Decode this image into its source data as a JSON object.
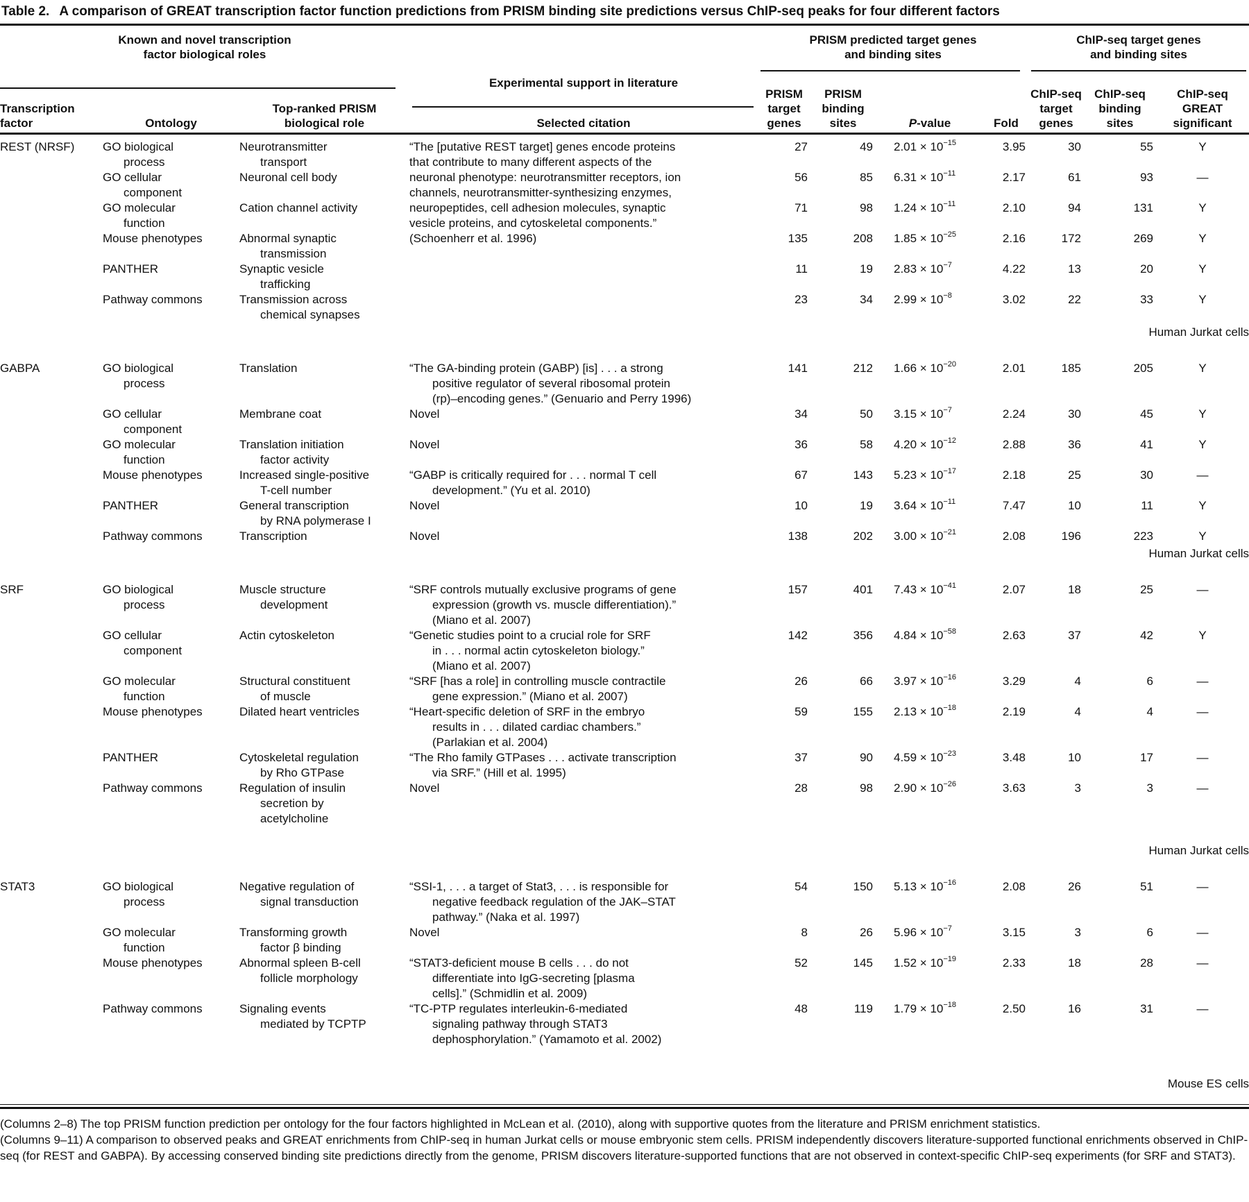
{
  "title": {
    "label": "Table 2.",
    "text": "A comparison of GREAT transcription factor function predictions from PRISM binding site predictions versus ChIP-seq peaks for four different factors"
  },
  "header": {
    "group_known": "Known and novel transcription\nfactor biological roles",
    "group_experimental": "Experimental support in literature",
    "group_prism": "PRISM predicted target genes\nand binding sites",
    "group_chipseq": "ChIP-seq target genes\nand binding sites",
    "col_factor": "Transcription\nfactor",
    "col_ontology": "Ontology",
    "col_role": "Top-ranked PRISM\nbiological role",
    "col_citation": "Selected citation",
    "col_prism_target_genes": "PRISM\ntarget\ngenes",
    "col_prism_binding_sites": "PRISM\nbinding\nsites",
    "col_pvalue": "P-value",
    "col_fold": "Fold",
    "col_chipseq_target_genes": "ChIP-seq\ntarget\ngenes",
    "col_chipseq_binding_sites": "ChIP-seq\nbinding\nsites",
    "col_great_significant": "ChIP-seq\nGREAT\nsignificant"
  },
  "table": {
    "sections": [
      {
        "factor": "REST (NRSF)",
        "note": "Human Jurkat cells",
        "block_citation": "“The [putative REST target] genes encode proteins\nthat contribute to many different aspects of the\nneuronal phenotype: neurotransmitter receptors, ion\nchannels, neurotransmitter-synthesizing enzymes,\nneuropeptides, cell adhesion molecules, synaptic\nvesicle proteins, and cytoskeletal components.”\n(Schoenherr et al. 1996)",
        "rows": [
          {
            "ontology": "GO biological\nprocess",
            "role": "Neurotransmitter\ntransport",
            "citation": "",
            "prism_target_genes": "27",
            "prism_binding_sites": "49",
            "pvalue": {
              "base": "2.01 × 10",
              "exp": "−15"
            },
            "fold": "3.95",
            "chipseq_target_genes": "30",
            "chipseq_binding_sites": "55",
            "great_significant": "Y"
          },
          {
            "ontology": "GO cellular\ncomponent",
            "role": "Neuronal cell body",
            "citation": "",
            "prism_target_genes": "56",
            "prism_binding_sites": "85",
            "pvalue": {
              "base": "6.31 × 10",
              "exp": "−11"
            },
            "fold": "2.17",
            "chipseq_target_genes": "61",
            "chipseq_binding_sites": "93",
            "great_significant": "—"
          },
          {
            "ontology": "GO molecular\nfunction",
            "role": "Cation channel activity",
            "citation": "",
            "prism_target_genes": "71",
            "prism_binding_sites": "98",
            "pvalue": {
              "base": "1.24 × 10",
              "exp": "−11"
            },
            "fold": "2.10",
            "chipseq_target_genes": "94",
            "chipseq_binding_sites": "131",
            "great_significant": "Y"
          },
          {
            "ontology": "Mouse phenotypes",
            "role": "Abnormal synaptic\ntransmission",
            "citation": "",
            "prism_target_genes": "135",
            "prism_binding_sites": "208",
            "pvalue": {
              "base": "1.85 × 10",
              "exp": "−25"
            },
            "fold": "2.16",
            "chipseq_target_genes": "172",
            "chipseq_binding_sites": "269",
            "great_significant": "Y"
          },
          {
            "ontology": "PANTHER",
            "role": "Synaptic vesicle\ntrafficking",
            "citation": "",
            "prism_target_genes": "11",
            "prism_binding_sites": "19",
            "pvalue": {
              "base": "2.83 × 10",
              "exp": "−7"
            },
            "fold": "4.22",
            "chipseq_target_genes": "13",
            "chipseq_binding_sites": "20",
            "great_significant": "Y"
          },
          {
            "ontology": "Pathway commons",
            "role": "Transmission across\nchemical synapses",
            "citation": "",
            "prism_target_genes": "23",
            "prism_binding_sites": "34",
            "pvalue": {
              "base": "2.99 × 10",
              "exp": "−8"
            },
            "fold": "3.02",
            "chipseq_target_genes": "22",
            "chipseq_binding_sites": "33",
            "great_significant": "Y"
          }
        ]
      },
      {
        "factor": "GABPA",
        "note": "Human Jurkat cells",
        "rows": [
          {
            "ontology": "GO biological\nprocess",
            "role": "Translation",
            "citation": "“The GA-binding protein (GABP) [is] . . . a strong\npositive regulator of several ribosomal protein\n(rp)–encoding genes.” (Genuario and Perry 1996)",
            "prism_target_genes": "141",
            "prism_binding_sites": "212",
            "pvalue": {
              "base": "1.66 × 10",
              "exp": "−20"
            },
            "fold": "2.01",
            "chipseq_target_genes": "185",
            "chipseq_binding_sites": "205",
            "great_significant": "Y"
          },
          {
            "ontology": "GO cellular\ncomponent",
            "role": "Membrane coat",
            "citation": "Novel",
            "prism_target_genes": "34",
            "prism_binding_sites": "50",
            "pvalue": {
              "base": "3.15 × 10",
              "exp": "−7"
            },
            "fold": "2.24",
            "chipseq_target_genes": "30",
            "chipseq_binding_sites": "45",
            "great_significant": "Y"
          },
          {
            "ontology": "GO molecular\nfunction",
            "role": "Translation initiation\nfactor activity",
            "citation": "Novel",
            "prism_target_genes": "36",
            "prism_binding_sites": "58",
            "pvalue": {
              "base": "4.20 × 10",
              "exp": "−12"
            },
            "fold": "2.88",
            "chipseq_target_genes": "36",
            "chipseq_binding_sites": "41",
            "great_significant": "Y"
          },
          {
            "ontology": "Mouse phenotypes",
            "role": "Increased single-positive\nT-cell number",
            "citation": "“GABP is critically required for . . . normal T cell\ndevelopment.” (Yu et al. 2010)",
            "prism_target_genes": "67",
            "prism_binding_sites": "143",
            "pvalue": {
              "base": "5.23 × 10",
              "exp": "−17"
            },
            "fold": "2.18",
            "chipseq_target_genes": "25",
            "chipseq_binding_sites": "30",
            "great_significant": "—"
          },
          {
            "ontology": "PANTHER",
            "role": "General transcription\nby RNA polymerase I",
            "citation": "Novel",
            "prism_target_genes": "10",
            "prism_binding_sites": "19",
            "pvalue": {
              "base": "3.64 × 10",
              "exp": "−11"
            },
            "fold": "7.47",
            "chipseq_target_genes": "10",
            "chipseq_binding_sites": "11",
            "great_significant": "Y"
          },
          {
            "ontology": "Pathway commons",
            "role": "Transcription",
            "citation": "Novel",
            "prism_target_genes": "138",
            "prism_binding_sites": "202",
            "pvalue": {
              "base": "3.00 × 10",
              "exp": "−21"
            },
            "fold": "2.08",
            "chipseq_target_genes": "196",
            "chipseq_binding_sites": "223",
            "great_significant": "Y"
          }
        ]
      },
      {
        "factor": "SRF",
        "note": "Human Jurkat cells",
        "rows": [
          {
            "ontology": "GO biological\nprocess",
            "role": "Muscle structure\ndevelopment",
            "citation": "“SRF controls mutually exclusive programs of gene\nexpression (growth vs. muscle differentiation).”\n(Miano et al. 2007)",
            "prism_target_genes": "157",
            "prism_binding_sites": "401",
            "pvalue": {
              "base": "7.43 × 10",
              "exp": "−41"
            },
            "fold": "2.07",
            "chipseq_target_genes": "18",
            "chipseq_binding_sites": "25",
            "great_significant": "—"
          },
          {
            "ontology": "GO cellular\ncomponent",
            "role": "Actin cytoskeleton",
            "citation": "“Genetic studies point to a crucial role for SRF\nin . . . normal actin cytoskeleton biology.”\n(Miano et al. 2007)",
            "prism_target_genes": "142",
            "prism_binding_sites": "356",
            "pvalue": {
              "base": "4.84 × 10",
              "exp": "−58"
            },
            "fold": "2.63",
            "chipseq_target_genes": "37",
            "chipseq_binding_sites": "42",
            "great_significant": "Y"
          },
          {
            "ontology": "GO molecular\nfunction",
            "role": "Structural constituent\nof muscle",
            "citation": "“SRF [has a role] in controlling muscle contractile\ngene expression.” (Miano et al. 2007)",
            "prism_target_genes": "26",
            "prism_binding_sites": "66",
            "pvalue": {
              "base": "3.97 × 10",
              "exp": "−16"
            },
            "fold": "3.29",
            "chipseq_target_genes": "4",
            "chipseq_binding_sites": "6",
            "great_significant": "—"
          },
          {
            "ontology": "Mouse phenotypes",
            "role": "Dilated heart ventricles",
            "citation": "“Heart-specific deletion of SRF in the embryo\nresults in . . . dilated cardiac chambers.”\n(Parlakian et al. 2004)",
            "prism_target_genes": "59",
            "prism_binding_sites": "155",
            "pvalue": {
              "base": "2.13 × 10",
              "exp": "−18"
            },
            "fold": "2.19",
            "chipseq_target_genes": "4",
            "chipseq_binding_sites": "4",
            "great_significant": "—"
          },
          {
            "ontology": "PANTHER",
            "role": "Cytoskeletal regulation\nby Rho GTPase",
            "citation": "“The Rho family GTPases . . . activate transcription\nvia SRF.” (Hill et al. 1995)",
            "prism_target_genes": "37",
            "prism_binding_sites": "90",
            "pvalue": {
              "base": "4.59 × 10",
              "exp": "−23"
            },
            "fold": "3.48",
            "chipseq_target_genes": "10",
            "chipseq_binding_sites": "17",
            "great_significant": "—"
          },
          {
            "ontology": "Pathway commons",
            "role": "Regulation of insulin\nsecretion by\nacetylcholine",
            "citation": "Novel",
            "prism_target_genes": "28",
            "prism_binding_sites": "98",
            "pvalue": {
              "base": "2.90 × 10",
              "exp": "−26"
            },
            "fold": "3.63",
            "chipseq_target_genes": "3",
            "chipseq_binding_sites": "3",
            "great_significant": "—"
          }
        ]
      },
      {
        "factor": "STAT3",
        "note": "Mouse ES cells",
        "rows": [
          {
            "ontology": "GO biological\nprocess",
            "role": "Negative regulation of\nsignal transduction",
            "citation": "“SSI-1, . . . a target of Stat3, . . . is responsible for\nnegative feedback regulation of the JAK–STAT\npathway.” (Naka et al. 1997)",
            "prism_target_genes": "54",
            "prism_binding_sites": "150",
            "pvalue": {
              "base": "5.13 × 10",
              "exp": "−16"
            },
            "fold": "2.08",
            "chipseq_target_genes": "26",
            "chipseq_binding_sites": "51",
            "great_significant": "—"
          },
          {
            "ontology": "GO molecular\nfunction",
            "role": "Transforming growth\nfactor β binding",
            "citation": "Novel",
            "prism_target_genes": "8",
            "prism_binding_sites": "26",
            "pvalue": {
              "base": "5.96 × 10",
              "exp": "−7"
            },
            "fold": "3.15",
            "chipseq_target_genes": "3",
            "chipseq_binding_sites": "6",
            "great_significant": "—"
          },
          {
            "ontology": "Mouse phenotypes",
            "role": "Abnormal spleen B-cell\nfollicle morphology",
            "citation": "“STAT3-deficient mouse B cells . . . do not\ndifferentiate into IgG-secreting [plasma\ncells].” (Schmidlin et al. 2009)",
            "prism_target_genes": "52",
            "prism_binding_sites": "145",
            "pvalue": {
              "base": "1.52 × 10",
              "exp": "−19"
            },
            "fold": "2.33",
            "chipseq_target_genes": "18",
            "chipseq_binding_sites": "28",
            "great_significant": "—"
          },
          {
            "ontology": "Pathway commons",
            "role": "Signaling events\nmediated by TCPTP",
            "citation": "“TC-PTP regulates interleukin-6-mediated\nsignaling pathway through STAT3\ndephosphorylation.” (Yamamoto et al. 2002)",
            "prism_target_genes": "48",
            "prism_binding_sites": "119",
            "pvalue": {
              "base": "1.79 × 10",
              "exp": "−18"
            },
            "fold": "2.50",
            "chipseq_target_genes": "16",
            "chipseq_binding_sites": "31",
            "great_significant": "—"
          }
        ]
      }
    ]
  },
  "footnotes": [
    "(Columns 2–8) The top PRISM function prediction per ontology for the four factors highlighted in McLean et al. (2010), along with supportive quotes from the literature and PRISM enrichment statistics.",
    "(Columns 9–11) A comparison to observed peaks and GREAT enrichments from ChIP-seq in human Jurkat cells or mouse embryonic stem cells. PRISM independently discovers literature-supported functional enrichments observed in ChIP-seq (for REST and GABPA). By accessing conserved binding site predictions directly from the genome, PRISM discovers literature-supported functions that are not observed in context-specific ChIP-seq experiments (for SRF and STAT3)."
  ]
}
